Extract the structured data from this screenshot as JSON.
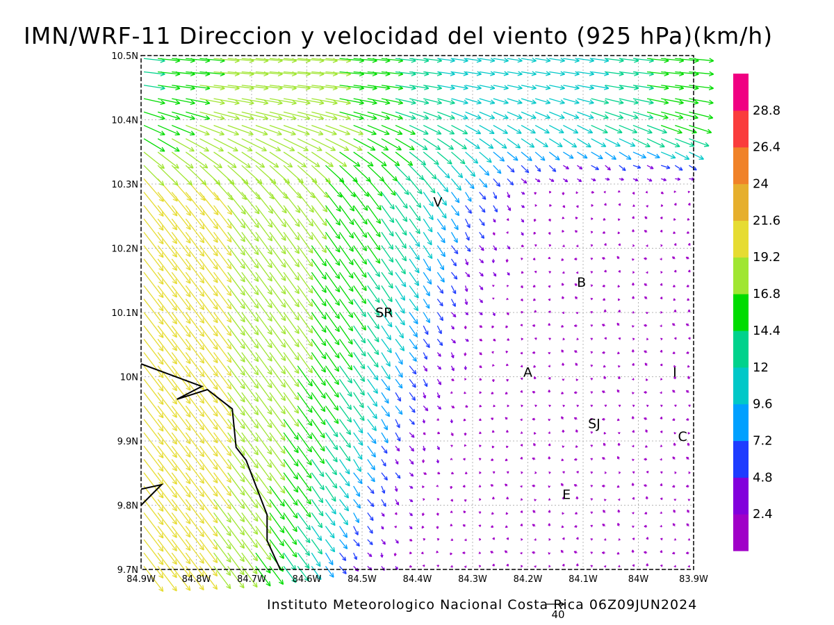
{
  "chart_data": {
    "type": "vector-field",
    "title": "IMN/WRF-11 Direccion y velocidad del viento (925 hPa)(km/h)",
    "credit": "Instituto Meteorologico Nacional Costa Rica 06Z09JUN2024",
    "x_ticks": [
      {
        "value": -84.9,
        "label": "84.9W"
      },
      {
        "value": -84.8,
        "label": "84.8W"
      },
      {
        "value": -84.7,
        "label": "84.7W"
      },
      {
        "value": -84.6,
        "label": "84.6W"
      },
      {
        "value": -84.5,
        "label": "84.5W"
      },
      {
        "value": -84.4,
        "label": "84.4W"
      },
      {
        "value": -84.3,
        "label": "84.3W"
      },
      {
        "value": -84.2,
        "label": "84.2W"
      },
      {
        "value": -84.1,
        "label": "84.1W"
      },
      {
        "value": -84.0,
        "label": "84W"
      },
      {
        "value": -83.9,
        "label": "83.9W"
      }
    ],
    "y_ticks": [
      {
        "value": 10.5,
        "label": "10.5N"
      },
      {
        "value": 10.4,
        "label": "10.4N"
      },
      {
        "value": 10.3,
        "label": "10.3N"
      },
      {
        "value": 10.2,
        "label": "10.2N"
      },
      {
        "value": 10.1,
        "label": "10.1N"
      },
      {
        "value": 10.0,
        "label": "10N"
      },
      {
        "value": 9.9,
        "label": "9.9N"
      },
      {
        "value": 9.8,
        "label": "9.8N"
      },
      {
        "value": 9.7,
        "label": "9.7N"
      }
    ],
    "xlim": [
      -84.9,
      -83.9
    ],
    "ylim": [
      9.7,
      10.5
    ],
    "grid": true,
    "legend": "right",
    "colorbar": {
      "colors": [
        "#a000c8",
        "#8200dc",
        "#1e3cff",
        "#00a0ff",
        "#00c8c8",
        "#00d28c",
        "#00dc00",
        "#a0e632",
        "#e6dc32",
        "#e6af2d",
        "#f08228",
        "#fa3c3c",
        "#f00082"
      ],
      "labels": [
        "2.4",
        "4.8",
        "7.2",
        "9.6",
        "12",
        "14.4",
        "16.8",
        "19.2",
        "21.6",
        "24",
        "26.4",
        "28.8"
      ]
    },
    "reference_vector": {
      "value": 40,
      "label": "40"
    },
    "places": [
      {
        "label": "V",
        "lon": -84.363,
        "lat": 10.265
      },
      {
        "label": "B",
        "lon": -84.103,
        "lat": 10.14
      },
      {
        "label": "SR",
        "lon": -84.46,
        "lat": 10.093
      },
      {
        "label": "A",
        "lon": -84.2,
        "lat": 10.0
      },
      {
        "label": "I",
        "lon": -83.934,
        "lat": 10.0
      },
      {
        "label": "SJ",
        "lon": -84.08,
        "lat": 9.92
      },
      {
        "label": "C",
        "lon": -83.92,
        "lat": 9.9
      },
      {
        "label": "E",
        "lon": -84.13,
        "lat": 9.81
      }
    ],
    "coastline": [
      [
        [
          -84.9,
          10.02
        ],
        [
          -84.79,
          9.985
        ],
        [
          -84.835,
          9.965
        ],
        [
          -84.78,
          9.98
        ],
        [
          -84.735,
          9.95
        ],
        [
          -84.728,
          9.89
        ],
        [
          -84.71,
          9.87
        ],
        [
          -84.672,
          9.785
        ],
        [
          -84.672,
          9.745
        ],
        [
          -84.648,
          9.7
        ]
      ],
      [
        [
          -84.9,
          9.825
        ],
        [
          -84.863,
          9.832
        ],
        [
          -84.9,
          9.8
        ]
      ]
    ]
  }
}
